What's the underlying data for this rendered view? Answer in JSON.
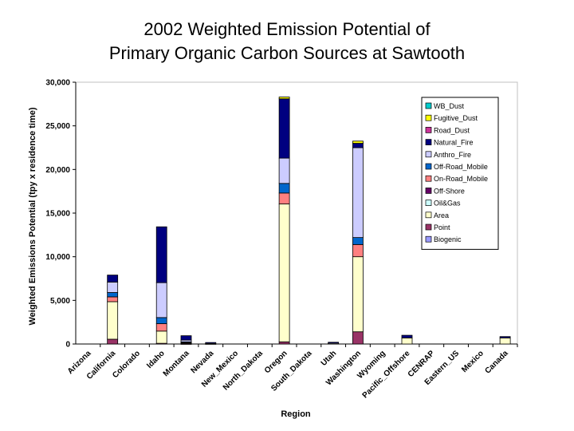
{
  "title_line1": "2002 Weighted Emission Potential of",
  "title_line2": "Primary Organic Carbon Sources at Sawtooth",
  "chart_data": {
    "type": "bar",
    "stacked": true,
    "xlabel": "Region",
    "ylabel": "Weighted Emissions Potential (tpy x residence time)",
    "ylim": [
      0,
      30000
    ],
    "yticks": [
      0,
      5000,
      10000,
      15000,
      20000,
      25000,
      30000
    ],
    "ytick_labels": [
      "0",
      "5,000",
      "10,000",
      "15,000",
      "20,000",
      "25,000",
      "30,000"
    ],
    "legend_position": "right",
    "categories": [
      "Arizona",
      "California",
      "Colorado",
      "Idaho",
      "Montana",
      "Nevada",
      "New_Mexico",
      "North_Dakota",
      "Oregon",
      "South_Dakota",
      "Utah",
      "Washington",
      "Wyoming",
      "Pacific_Offshore",
      "CENRAP",
      "Eastern_US",
      "Mexico",
      "Canada"
    ],
    "series": [
      {
        "name": "Biogenic",
        "color": "#9999ff",
        "values": [
          0,
          0,
          0,
          0,
          0,
          0,
          0,
          0,
          0,
          0,
          0,
          0,
          0,
          0,
          0,
          0,
          0,
          0
        ]
      },
      {
        "name": "Point",
        "color": "#993366",
        "values": [
          0,
          550,
          0,
          80,
          50,
          0,
          0,
          0,
          250,
          0,
          0,
          1400,
          0,
          0,
          0,
          0,
          0,
          0
        ]
      },
      {
        "name": "Area",
        "color": "#ffffcc",
        "values": [
          0,
          4300,
          0,
          1400,
          100,
          50,
          0,
          0,
          15800,
          0,
          80,
          8600,
          0,
          700,
          0,
          0,
          0,
          700
        ]
      },
      {
        "name": "Oil&Gas",
        "color": "#ccffff",
        "values": [
          0,
          0,
          0,
          0,
          0,
          0,
          0,
          0,
          0,
          0,
          0,
          0,
          0,
          0,
          0,
          0,
          0,
          0
        ]
      },
      {
        "name": "Off-Shore",
        "color": "#660066",
        "values": [
          0,
          0,
          0,
          0,
          0,
          0,
          0,
          0,
          0,
          0,
          0,
          0,
          0,
          0,
          0,
          0,
          0,
          0
        ]
      },
      {
        "name": "On-Road_Mobile",
        "color": "#ff8080",
        "values": [
          0,
          550,
          0,
          850,
          50,
          0,
          0,
          0,
          1250,
          0,
          0,
          1400,
          0,
          0,
          0,
          0,
          0,
          0
        ]
      },
      {
        "name": "Off-Road_Mobile",
        "color": "#0066cc",
        "values": [
          0,
          500,
          0,
          700,
          50,
          0,
          0,
          0,
          1100,
          0,
          0,
          800,
          0,
          0,
          0,
          0,
          0,
          0
        ]
      },
      {
        "name": "Anthro_Fire",
        "color": "#ccccff",
        "values": [
          0,
          1200,
          0,
          4000,
          200,
          0,
          0,
          0,
          2900,
          0,
          0,
          10300,
          0,
          0,
          0,
          0,
          0,
          0
        ]
      },
      {
        "name": "Natural_Fire",
        "color": "#000080",
        "values": [
          0,
          800,
          0,
          6400,
          500,
          120,
          0,
          0,
          6800,
          0,
          120,
          500,
          0,
          300,
          0,
          0,
          0,
          150
        ]
      },
      {
        "name": "Road_Dust",
        "color": "#cc3399",
        "values": [
          0,
          0,
          0,
          0,
          0,
          0,
          0,
          0,
          0,
          0,
          0,
          0,
          0,
          0,
          0,
          0,
          0,
          0
        ]
      },
      {
        "name": "Fugitive_Dust",
        "color": "#ffff00",
        "values": [
          0,
          0,
          0,
          0,
          0,
          0,
          0,
          0,
          200,
          0,
          0,
          250,
          0,
          0,
          0,
          0,
          0,
          0
        ]
      },
      {
        "name": "WB_Dust",
        "color": "#00cccc",
        "values": [
          0,
          0,
          0,
          0,
          0,
          0,
          0,
          0,
          0,
          0,
          0,
          0,
          0,
          0,
          0,
          0,
          0,
          0
        ]
      }
    ]
  }
}
